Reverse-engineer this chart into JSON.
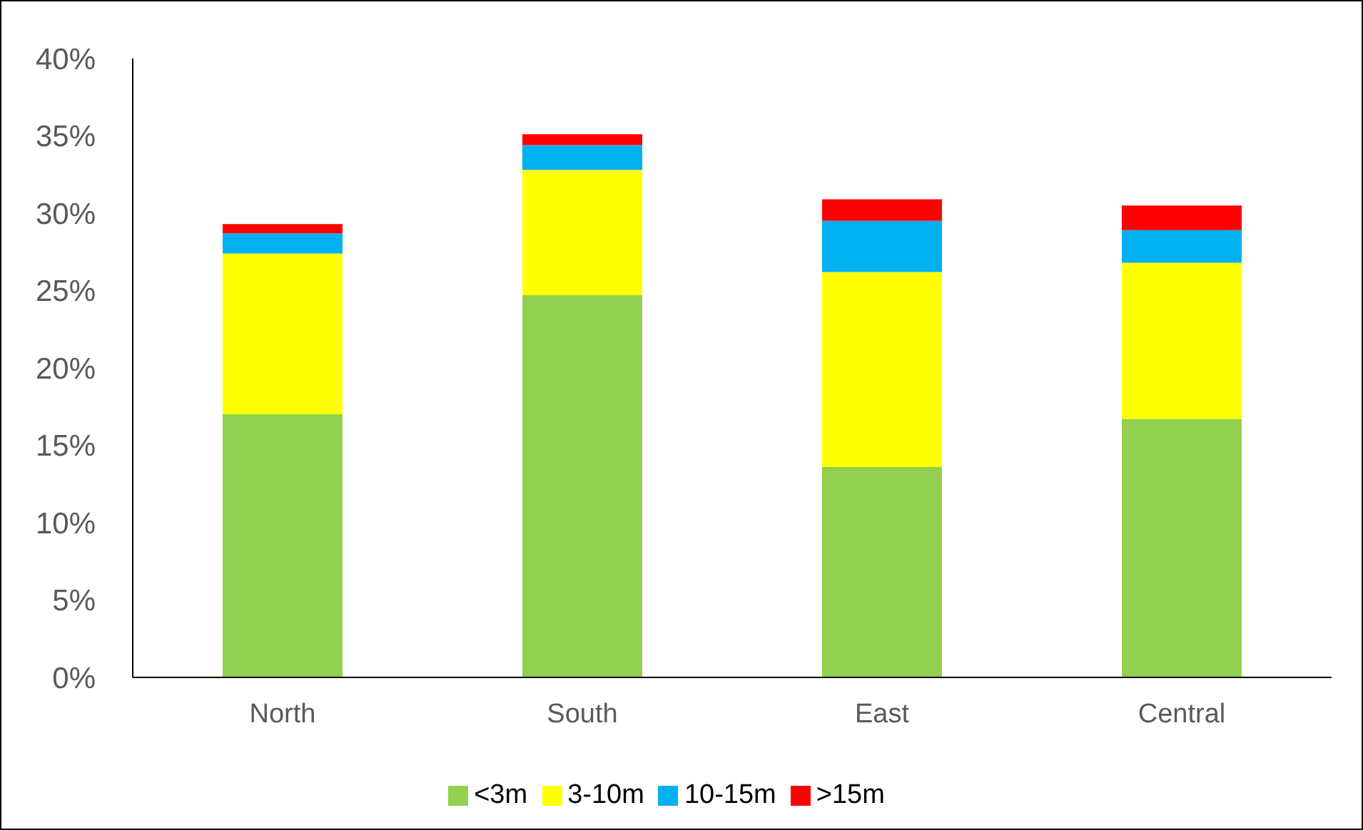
{
  "chart_data": {
    "type": "bar",
    "stacked": true,
    "categories": [
      "North",
      "South",
      "East",
      "Central"
    ],
    "series": [
      {
        "name": "<3m",
        "color": "#92d050",
        "values": [
          17.0,
          24.7,
          13.6,
          16.7
        ]
      },
      {
        "name": "3-10m",
        "color": "#ffff00",
        "values": [
          10.4,
          8.1,
          12.6,
          10.1
        ]
      },
      {
        "name": "10-15m",
        "color": "#00b0f0",
        "values": [
          1.3,
          1.6,
          3.3,
          2.1
        ]
      },
      {
        "name": ">15m",
        "color": "#ff0000",
        "values": [
          0.6,
          0.7,
          1.4,
          1.6
        ]
      }
    ],
    "ylim": [
      0,
      40
    ],
    "yticks": [
      {
        "value": 0,
        "label": "0%"
      },
      {
        "value": 5,
        "label": "5%"
      },
      {
        "value": 10,
        "label": "10%"
      },
      {
        "value": 15,
        "label": "15%"
      },
      {
        "value": 20,
        "label": "20%"
      },
      {
        "value": 25,
        "label": "25%"
      },
      {
        "value": 30,
        "label": "30%"
      },
      {
        "value": 35,
        "label": "35%"
      },
      {
        "value": 40,
        "label": "40%"
      }
    ],
    "grid": false,
    "legend": "bottom"
  }
}
